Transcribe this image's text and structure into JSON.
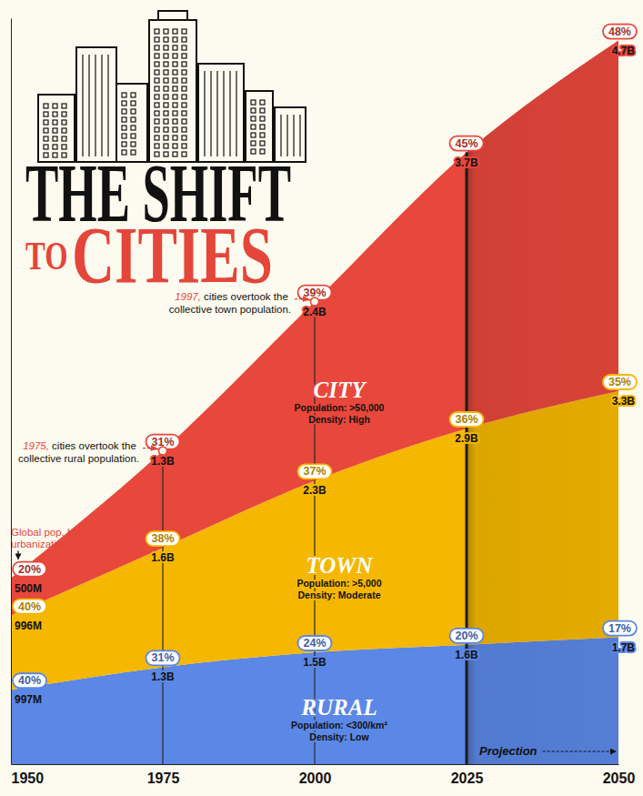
{
  "chart_data": {
    "type": "area",
    "title": "THE SHIFT",
    "subtitle": "TO CITIES",
    "stacked": true,
    "grid": true,
    "data_labels": true,
    "tick_labels": "x",
    "x": [
      1950,
      1975,
      2000,
      2025,
      2050
    ],
    "xlim": [
      1950,
      2050
    ],
    "xticks": [
      1950,
      1975,
      2000,
      2025,
      2050
    ],
    "ylim": [
      0,
      10
    ],
    "series": [
      {
        "name": "RURAL",
        "color": "#5b87e6",
        "description": [
          "Population: <300/km²",
          "Density: Low"
        ],
        "values": [
          0.997,
          1.3,
          1.5,
          1.6,
          1.7
        ],
        "value_labels": [
          "997M",
          "1.3B",
          "1.5B",
          "1.6B",
          "1.7B"
        ],
        "shares": [
          40,
          31,
          24,
          20,
          17
        ],
        "share_labels": [
          "40%",
          "31%",
          "24%",
          "20%",
          "17%"
        ]
      },
      {
        "name": "TOWN",
        "color": "#f5b700",
        "description": [
          "Population: >5,000",
          "Density: Moderate"
        ],
        "values": [
          0.996,
          1.6,
          2.3,
          2.9,
          3.3
        ],
        "value_labels": [
          "996M",
          "1.6B",
          "2.3B",
          "2.9B",
          "3.3B"
        ],
        "shares": [
          40,
          38,
          37,
          36,
          35
        ],
        "share_labels": [
          "40%",
          "38%",
          "37%",
          "36%",
          "35%"
        ]
      },
      {
        "name": "CITY",
        "color": "#e8473b",
        "description": [
          "Population: >50,000",
          "Density: High"
        ],
        "values": [
          0.5,
          1.3,
          2.4,
          3.7,
          4.7
        ],
        "value_labels": [
          "500M",
          "1.3B",
          "2.4B",
          "3.7B",
          "4.7B"
        ],
        "shares": [
          20,
          31,
          39,
          45,
          48
        ],
        "share_labels": [
          "20%",
          "31%",
          "39%",
          "45%",
          "48%"
        ]
      }
    ],
    "annotations": [
      {
        "type": "note",
        "x": 1950,
        "text": "Global pop. by urbanization"
      },
      {
        "type": "point",
        "x": 1975,
        "text": "1975, cities overtook the collective rural population."
      },
      {
        "type": "point",
        "x": 2000,
        "text": "1997, cities overtook the collective town population."
      },
      {
        "type": "range",
        "x": 2025,
        "text": "Projection"
      }
    ]
  }
}
